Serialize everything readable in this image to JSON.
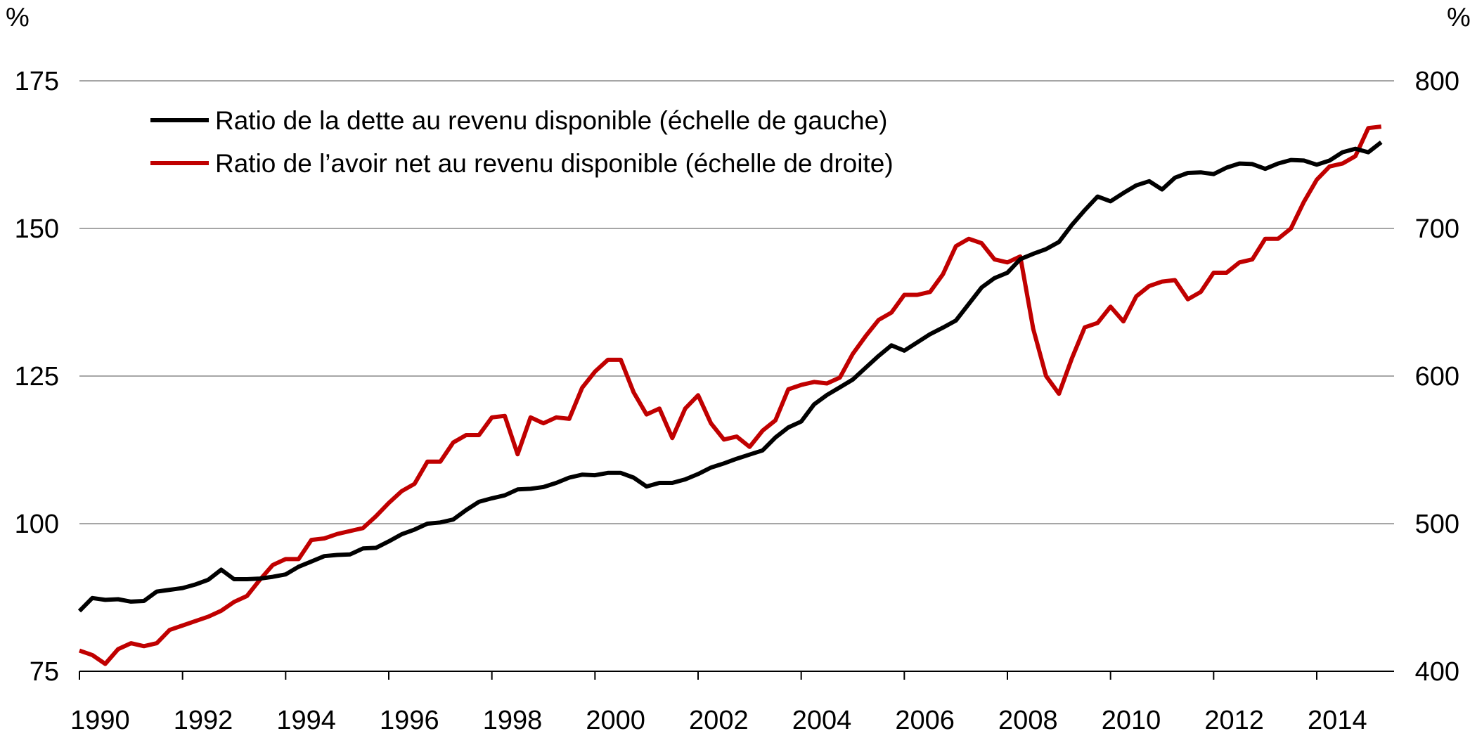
{
  "chart_data": {
    "type": "line",
    "y_left_unit": "%",
    "y_right_unit": "%",
    "y_left_lim": [
      75,
      175
    ],
    "y_right_lim": [
      400,
      800
    ],
    "y_left_ticks": [
      "175",
      "150",
      "125",
      "100",
      "75"
    ],
    "y_right_ticks": [
      "800",
      "700",
      "600",
      "500",
      "400"
    ],
    "x_lim": [
      1990,
      2015.5
    ],
    "x_ticks": [
      "1990",
      "1992",
      "1994",
      "1996",
      "1998",
      "2000",
      "2002",
      "2004",
      "2006",
      "2008",
      "2010",
      "2012",
      "2014"
    ],
    "grid": "horizontal",
    "legend_position": "top-left",
    "colors": {
      "debt": "#000000",
      "net_worth": "#c00000",
      "grid": "#a6a6a6"
    },
    "series": [
      {
        "name": "Ratio de la dette au revenu disponible (échelle de gauche)",
        "axis": "left",
        "x": [
          1990.0,
          1990.25,
          1990.5,
          1990.75,
          1991.0,
          1991.25,
          1991.5,
          1991.75,
          1992.0,
          1992.25,
          1992.5,
          1992.75,
          1993.0,
          1993.25,
          1993.5,
          1993.75,
          1994.0,
          1994.25,
          1994.5,
          1994.75,
          1995.0,
          1995.25,
          1995.5,
          1995.75,
          1996.0,
          1996.25,
          1996.5,
          1996.75,
          1997.0,
          1997.25,
          1997.5,
          1997.75,
          1998.0,
          1998.25,
          1998.5,
          1998.75,
          1999.0,
          1999.25,
          1999.5,
          1999.75,
          2000.0,
          2000.25,
          2000.5,
          2000.75,
          2001.0,
          2001.25,
          2001.5,
          2001.75,
          2002.0,
          2002.25,
          2002.5,
          2002.75,
          2003.0,
          2003.25,
          2003.5,
          2003.75,
          2004.0,
          2004.25,
          2004.5,
          2004.75,
          2005.0,
          2005.25,
          2005.5,
          2005.75,
          2006.0,
          2006.25,
          2006.5,
          2006.75,
          2007.0,
          2007.25,
          2007.5,
          2007.75,
          2008.0,
          2008.25,
          2008.5,
          2008.75,
          2009.0,
          2009.25,
          2009.5,
          2009.75,
          2010.0,
          2010.25,
          2010.5,
          2010.75,
          2011.0,
          2011.25,
          2011.5,
          2011.75,
          2012.0,
          2012.25,
          2012.5,
          2012.75,
          2013.0,
          2013.25,
          2013.5,
          2013.75,
          2014.0,
          2014.25,
          2014.5,
          2014.75,
          2015.0,
          2015.25
        ],
        "values": [
          85.2,
          87.4,
          87.1,
          87.2,
          86.8,
          86.9,
          88.5,
          88.8,
          89.1,
          89.7,
          90.5,
          92.2,
          90.6,
          90.6,
          90.7,
          91.0,
          91.4,
          92.7,
          93.6,
          94.5,
          94.7,
          94.8,
          95.8,
          95.9,
          97.0,
          98.2,
          99.0,
          100.0,
          100.2,
          100.7,
          102.3,
          103.7,
          104.3,
          104.8,
          105.8,
          105.9,
          106.2,
          106.9,
          107.8,
          108.3,
          108.2,
          108.6,
          108.6,
          107.8,
          106.3,
          106.9,
          106.9,
          107.5,
          108.4,
          109.5,
          110.2,
          111.0,
          111.7,
          112.4,
          114.6,
          116.3,
          117.3,
          120.2,
          121.8,
          123.1,
          124.4,
          126.4,
          128.4,
          130.2,
          129.3,
          130.7,
          132.1,
          133.2,
          134.4,
          137.2,
          140.0,
          141.6,
          142.5,
          144.8,
          145.7,
          146.5,
          147.7,
          150.6,
          153.1,
          155.4,
          154.6,
          156.0,
          157.3,
          158.0,
          156.6,
          158.6,
          159.4,
          159.5,
          159.2,
          160.3,
          161.0,
          160.9,
          160.1,
          161.0,
          161.6,
          161.5,
          160.8,
          161.5,
          162.9,
          163.5,
          162.9,
          164.6
        ]
      },
      {
        "name": "Ratio de l’avoir net au revenu disponible (échelle de droite)",
        "axis": "right",
        "x": [
          1990.0,
          1990.25,
          1990.5,
          1990.75,
          1991.0,
          1991.25,
          1991.5,
          1991.75,
          1992.0,
          1992.25,
          1992.5,
          1992.75,
          1993.0,
          1993.25,
          1993.5,
          1993.75,
          1994.0,
          1994.25,
          1994.5,
          1994.75,
          1995.0,
          1995.25,
          1995.5,
          1995.75,
          1996.0,
          1996.25,
          1996.5,
          1996.75,
          1997.0,
          1997.25,
          1997.5,
          1997.75,
          1998.0,
          1998.25,
          1998.5,
          1998.75,
          1999.0,
          1999.25,
          1999.5,
          1999.75,
          2000.0,
          2000.25,
          2000.5,
          2000.75,
          2001.0,
          2001.25,
          2001.5,
          2001.75,
          2002.0,
          2002.25,
          2002.5,
          2002.75,
          2003.0,
          2003.25,
          2003.5,
          2003.75,
          2004.0,
          2004.25,
          2004.5,
          2004.75,
          2005.0,
          2005.25,
          2005.5,
          2005.75,
          2006.0,
          2006.25,
          2006.5,
          2006.75,
          2007.0,
          2007.25,
          2007.5,
          2007.75,
          2008.0,
          2008.25,
          2008.5,
          2008.75,
          2009.0,
          2009.25,
          2009.5,
          2009.75,
          2010.0,
          2010.25,
          2010.5,
          2010.75,
          2011.0,
          2011.25,
          2011.5,
          2011.75,
          2012.0,
          2012.25,
          2012.5,
          2012.75,
          2013.0,
          2013.25,
          2013.5,
          2013.75,
          2014.0,
          2014.25,
          2014.5,
          2014.75,
          2015.0,
          2015.25
        ],
        "values": [
          414,
          411,
          405,
          415,
          419,
          417,
          419,
          428,
          431,
          434,
          437,
          441,
          447,
          451,
          462,
          472,
          476,
          476,
          489,
          490,
          493,
          495,
          497,
          505,
          514,
          522,
          527,
          542,
          542,
          555,
          560,
          560,
          572,
          573,
          547,
          572,
          568,
          572,
          571,
          592,
          603,
          611,
          611,
          589,
          574,
          578,
          558,
          578,
          587,
          568,
          557,
          559,
          552,
          563,
          570,
          591,
          594,
          596,
          595,
          599,
          615,
          627,
          638,
          643,
          655,
          655,
          657,
          669,
          688,
          693,
          690,
          679,
          677,
          681,
          632,
          600,
          588,
          612,
          633,
          636,
          647,
          637,
          654,
          661,
          664,
          665,
          652,
          657,
          670,
          670,
          677,
          679,
          693,
          693,
          700,
          718,
          733,
          742,
          744,
          749,
          768,
          769
        ]
      }
    ]
  }
}
